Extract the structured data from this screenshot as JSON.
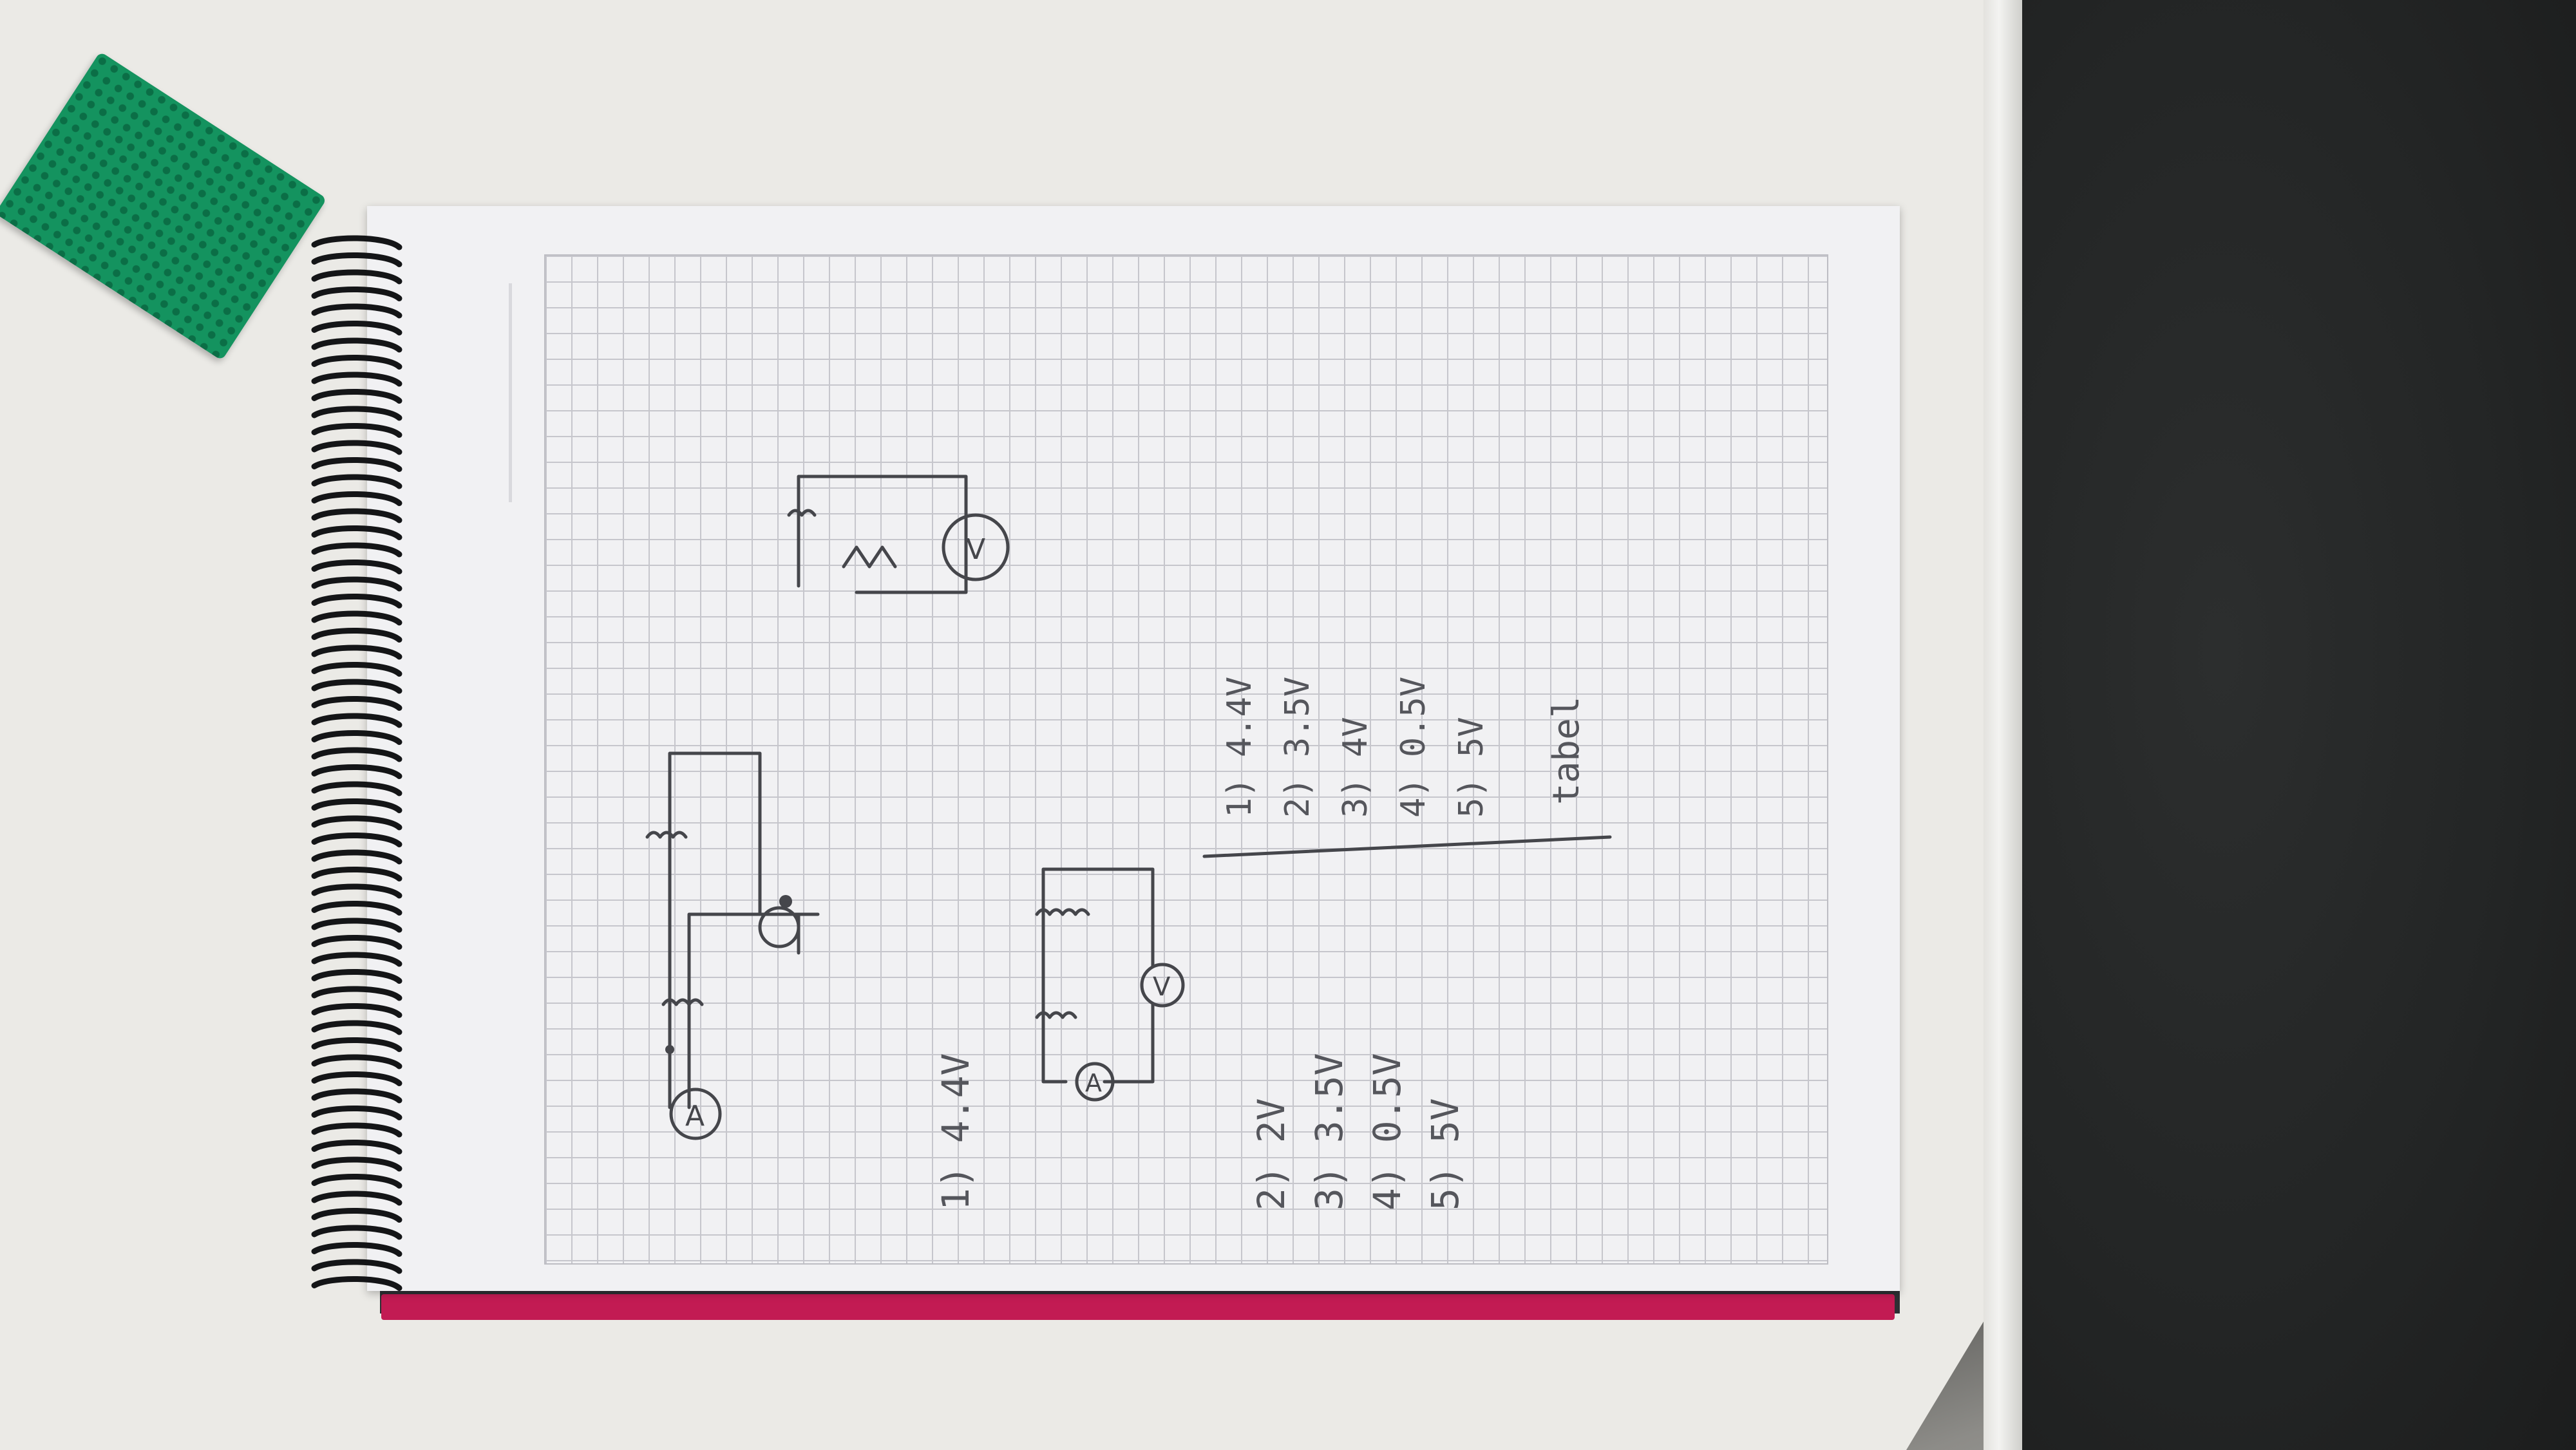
{
  "scene": "notebook on desk",
  "colors": {
    "desk": "#ebeae6",
    "paper": "#f1f1f3",
    "grid": "#c6c6cc",
    "ink": "#45464b",
    "board": "#14935f",
    "cover": "#c21b53",
    "chair": "#232525"
  },
  "left_column": [
    {
      "label": "1)",
      "value": "4.4V"
    },
    {
      "label": "2)",
      "value": "2V"
    },
    {
      "label": "3)",
      "value": "3.5V"
    },
    {
      "label": "4)",
      "value": "0.5V"
    },
    {
      "label": "5)",
      "value": "5V"
    }
  ],
  "right_column": [
    {
      "label": "1)",
      "value": "4.4V"
    },
    {
      "label": "2)",
      "value": "3.5V"
    },
    {
      "label": "3)",
      "value": "4V"
    },
    {
      "label": "4)",
      "value": "0.5V"
    },
    {
      "label": "5)",
      "value": "5V"
    }
  ],
  "word": "tabel",
  "meter_labels": {
    "ammeter": "A",
    "voltmeter": "V"
  }
}
